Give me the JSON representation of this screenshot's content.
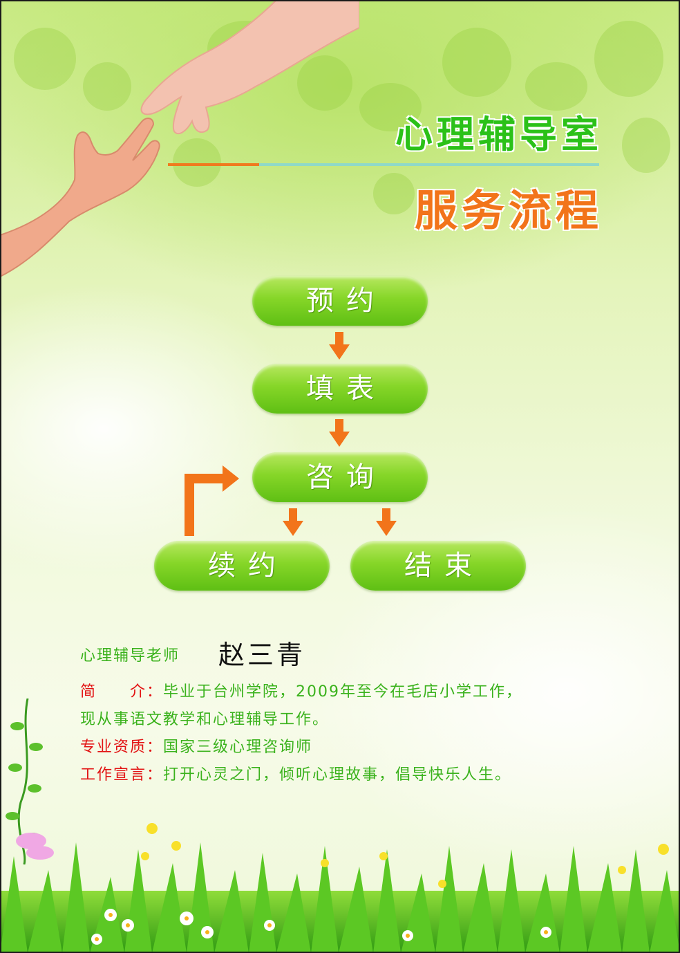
{
  "header": {
    "title": "心理辅导室",
    "subtitle": "服务流程"
  },
  "flow": {
    "step1": "预约",
    "step2": "填表",
    "step3": "咨询",
    "step4": "续约",
    "step5": "结束"
  },
  "teacher": {
    "label": "心理辅导老师",
    "name": "赵三青",
    "intro_label": "简　　介：",
    "intro_line1": "毕业于台州学院，2009年至今在毛店小学工作，",
    "intro_line2": "现从事语文教学和心理辅导工作。",
    "qual_label": "专业资质：",
    "qual_value": "国家三级心理咨询师",
    "motto_label": "工作宣言：",
    "motto_value": "打开心灵之门，倾听心理故事，倡导快乐人生。"
  },
  "colors": {
    "title_green": "#2bc118",
    "title_orange": "#f2741a",
    "arrow_orange": "#f2741a",
    "button_green": "#86d628",
    "label_red": "#e21313",
    "text_green": "#3ab21c"
  }
}
